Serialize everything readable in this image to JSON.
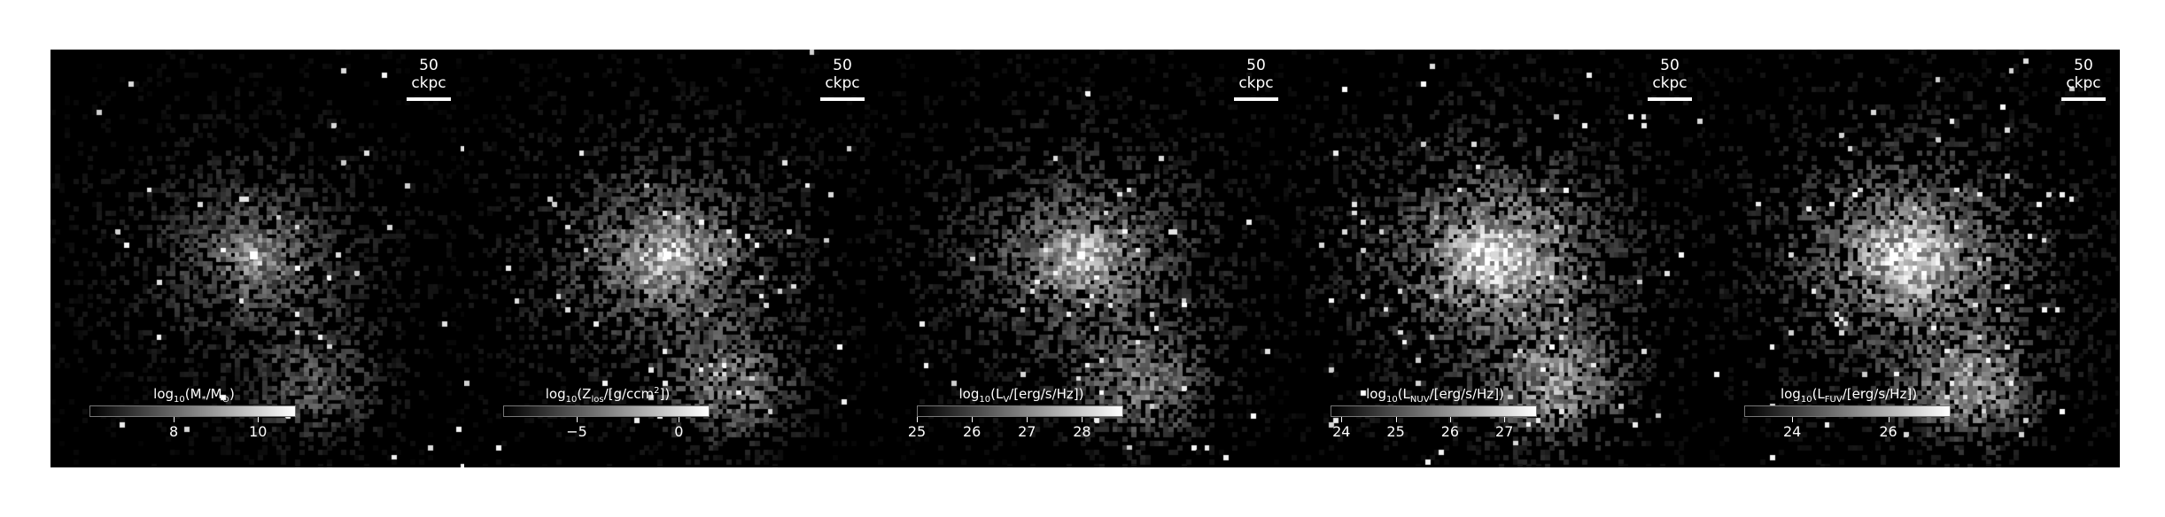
{
  "scale_label": "50 ckpc",
  "colors": {
    "background": "#000000",
    "foreground": "#ffffff"
  },
  "panels": [
    {
      "id": "stellar-mass",
      "label_prefix": "log",
      "label_base": "10",
      "label_body": "(M",
      "label_sub": "*",
      "label_rest": "/M",
      "label_sub2": "⊙",
      "label_end": ")",
      "ticks": [
        {
          "value": 8,
          "label": "8"
        },
        {
          "value": 10,
          "label": "10"
        }
      ],
      "range": [
        6.0,
        10.9
      ],
      "brightness": 0.55,
      "spread": 0.45,
      "core": 1.0
    },
    {
      "id": "metallicity",
      "label_prefix": "log",
      "label_base": "10",
      "label_body": "(Z",
      "label_sub": "los",
      "label_rest": "/[g/ccm",
      "label_sup": "2",
      "label_end": "])",
      "ticks": [
        {
          "value": -5,
          "label": "−5"
        },
        {
          "value": 0,
          "label": "0"
        }
      ],
      "range": [
        -8.6,
        1.5
      ],
      "brightness": 0.75,
      "spread": 0.6,
      "core": 1.0
    },
    {
      "id": "luminosity-v",
      "label_prefix": "log",
      "label_base": "10",
      "label_body": "(L",
      "label_sub": "V",
      "label_rest": "/[erg/s/Hz])",
      "label_end": "",
      "ticks": [
        {
          "value": 25,
          "label": "25"
        },
        {
          "value": 26,
          "label": "26"
        },
        {
          "value": 27,
          "label": "27"
        },
        {
          "value": 28,
          "label": "28"
        }
      ],
      "range": [
        25.0,
        28.75
      ],
      "brightness": 0.75,
      "spread": 0.6,
      "core": 1.0
    },
    {
      "id": "luminosity-nuv",
      "label_prefix": "log",
      "label_base": "10",
      "label_body": "(L",
      "label_sub": "NUV",
      "label_rest": "/[erg/s/Hz])",
      "label_end": "",
      "ticks": [
        {
          "value": 24,
          "label": "24"
        },
        {
          "value": 25,
          "label": "25"
        },
        {
          "value": 26,
          "label": "26"
        },
        {
          "value": 27,
          "label": "27"
        }
      ],
      "range": [
        23.8,
        27.6
      ],
      "brightness": 0.95,
      "spread": 0.8,
      "core": 0.85
    },
    {
      "id": "luminosity-fuv",
      "label_prefix": "log",
      "label_base": "10",
      "label_body": "(L",
      "label_sub": "FUV",
      "label_rest": "/[erg/s/Hz])",
      "label_end": "",
      "ticks": [
        {
          "value": 24,
          "label": "24"
        },
        {
          "value": 26,
          "label": "26"
        }
      ],
      "range": [
        23.0,
        27.3
      ],
      "brightness": 0.95,
      "spread": 0.8,
      "core": 0.85
    }
  ]
}
